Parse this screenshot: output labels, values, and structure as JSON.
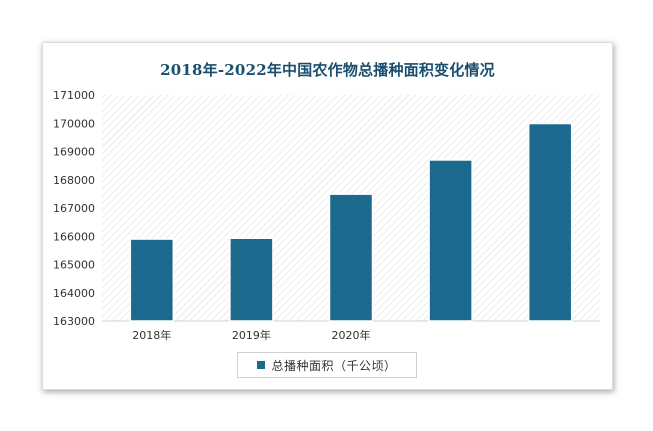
{
  "chart_data": {
    "type": "bar",
    "title": "2018年-2022年中国农作物总播种面积变化情况",
    "categories": [
      "2018年",
      "2019年",
      "2020年",
      "",
      ""
    ],
    "series": [
      {
        "name": "总播种面积（千公顷）",
        "values": [
          165900,
          165930,
          167490,
          168700,
          169990
        ]
      }
    ],
    "ylim": [
      163000,
      171000
    ],
    "yticks": [
      "163000",
      "164000",
      "165000",
      "166000",
      "167000",
      "168000",
      "169000",
      "170000",
      "171000"
    ],
    "grid": false,
    "legend": "bottom",
    "colors": {
      "bar": "#1b6a8e",
      "title": "#1a4e6e",
      "hatch": "#d4d4d4"
    }
  }
}
